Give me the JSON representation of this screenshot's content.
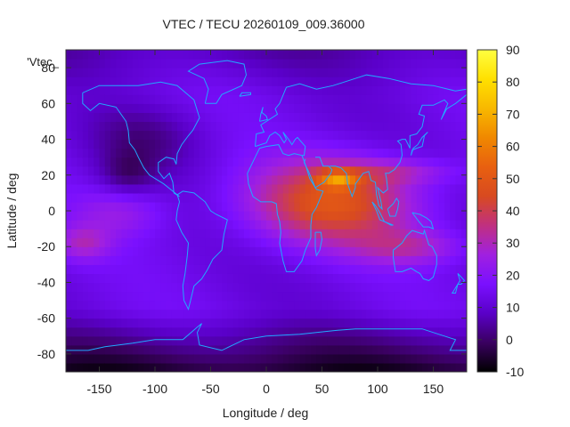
{
  "chart_data": {
    "type": "heatmap",
    "title": "VTEC / TECU 20260109_009.36000",
    "xlabel": "Longitude / deg",
    "ylabel": "Latitude / deg",
    "series_label": "'Vtec_",
    "xlim": [
      -180,
      180
    ],
    "ylim": [
      -90,
      90
    ],
    "x_ticks": [
      -150,
      -100,
      -50,
      0,
      50,
      100,
      150
    ],
    "y_ticks": [
      -80,
      -60,
      -40,
      -20,
      0,
      20,
      40,
      60,
      80
    ],
    "colorbar": {
      "range": [
        -10,
        90
      ],
      "ticks": [
        -10,
        0,
        10,
        20,
        30,
        40,
        50,
        60,
        70,
        80,
        90
      ],
      "palette": [
        "#000000",
        "#3a0060",
        "#5a00c8",
        "#7a10ff",
        "#a020e0",
        "#c03080",
        "#d84a20",
        "#e86010",
        "#f08800",
        "#f8b800",
        "#ffe000",
        "#ffff40"
      ]
    },
    "coastline_color": "#22a8ff",
    "frame_color": "#333333"
  }
}
